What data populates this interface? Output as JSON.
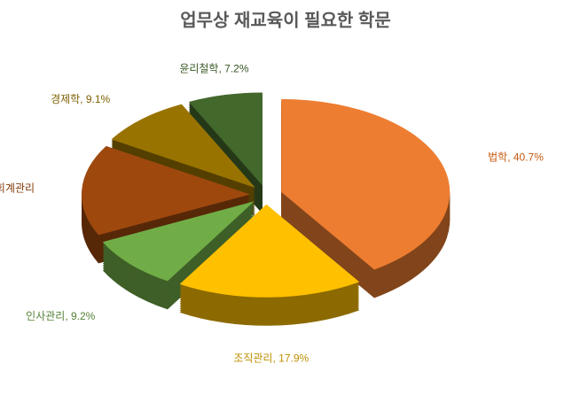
{
  "chart_data": {
    "type": "pie",
    "title": "업무상 재교육이 필요한 학문",
    "values": [
      40.7,
      17.9,
      9.2,
      15.9,
      9.1,
      7.2
    ],
    "value_labels": [
      "법학, 40.7%",
      "조직관리, 17.9%",
      "인사관리, 9.2%",
      "재무/회계관리",
      "경제학, 9.1%",
      "윤리철학, 7.2%"
    ],
    "colors": [
      "#ed7d31",
      "#ffc000",
      "#70ad47",
      "#9e480e",
      "#997300",
      "#43682b"
    ],
    "label_colors": [
      "#c55a11",
      "#bf8f00",
      "#548235",
      "#843c0c",
      "#7f6000",
      "#375623"
    ]
  }
}
